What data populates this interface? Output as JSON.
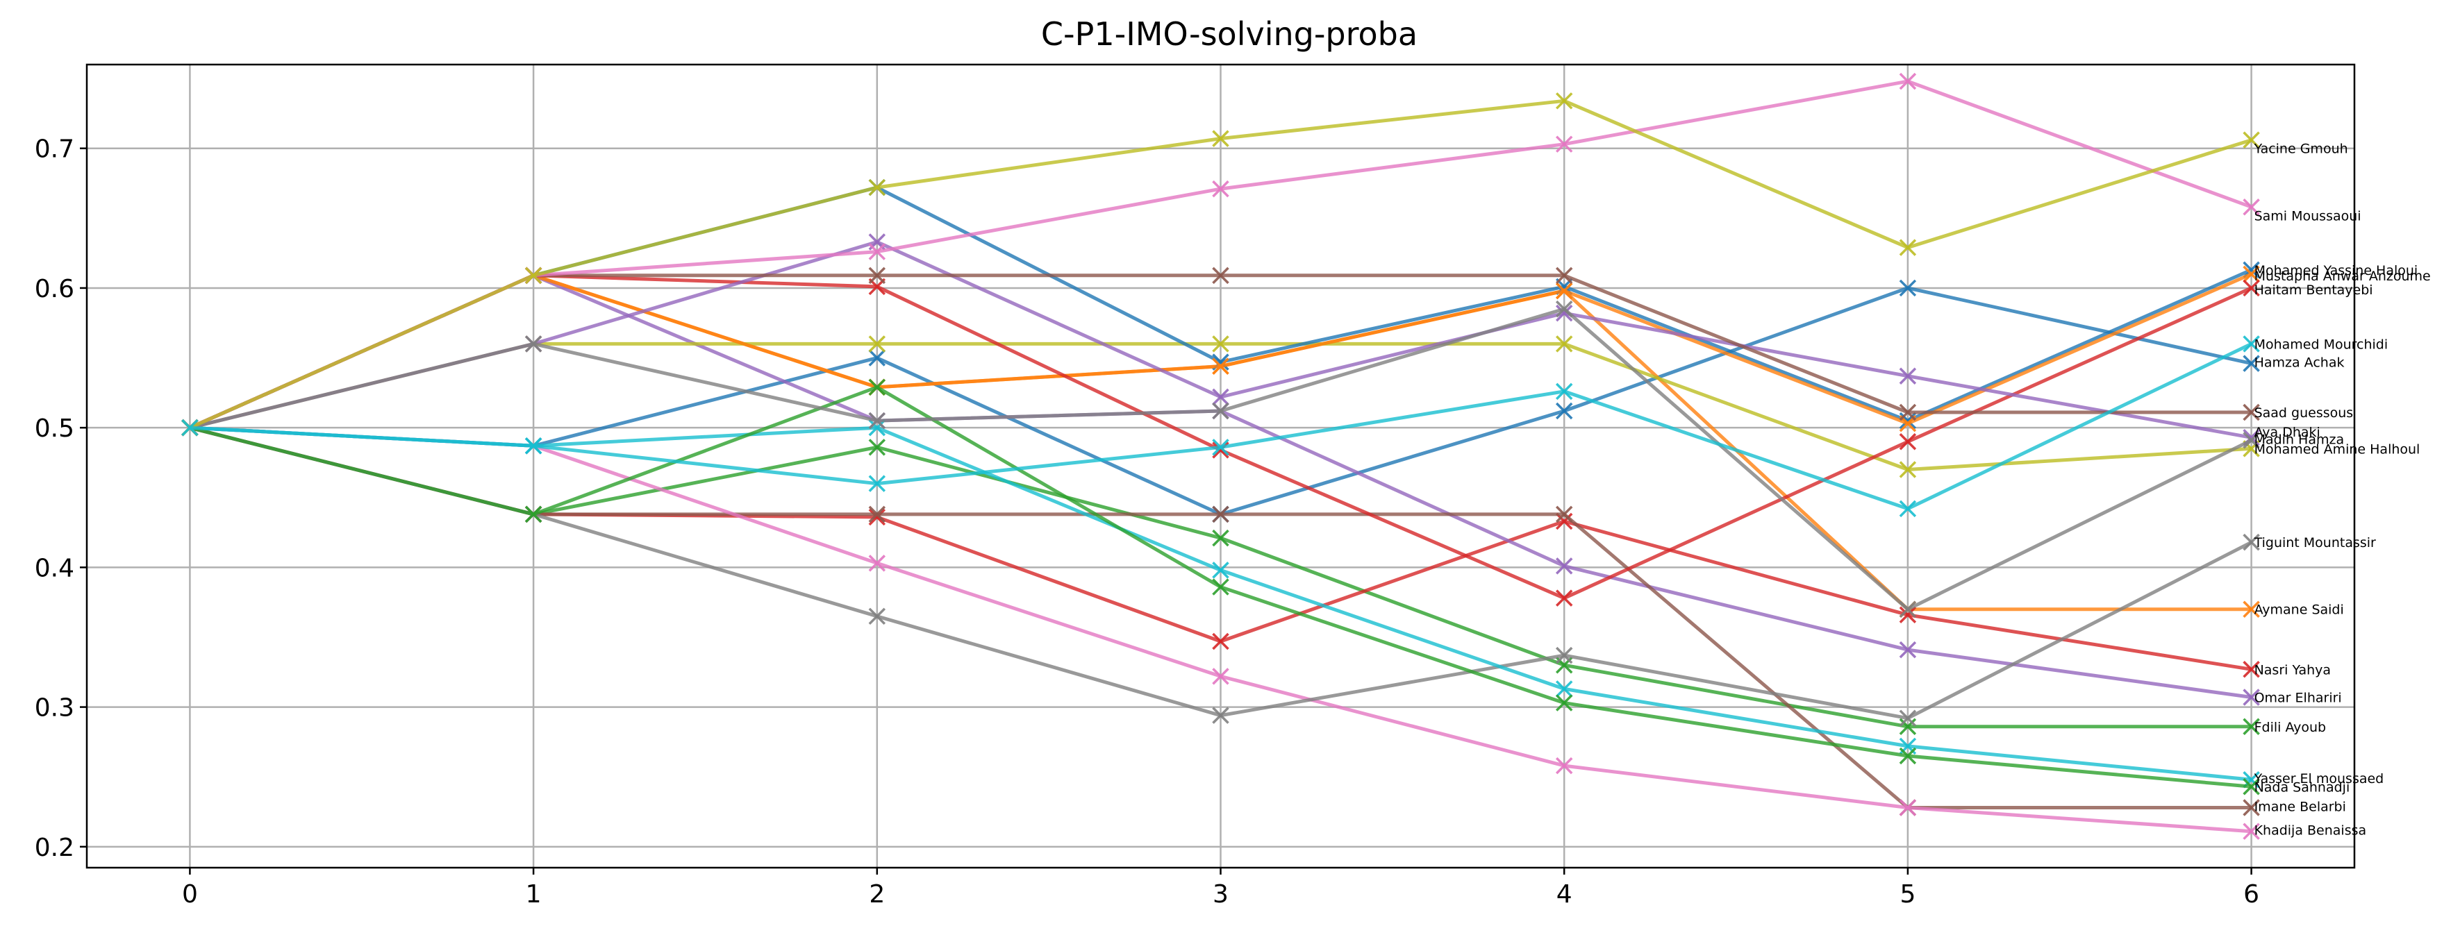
{
  "chart_data": {
    "type": "line",
    "title": "C-P1-IMO-solving-proba",
    "xlabel": "",
    "ylabel": "",
    "xlim": [
      -0.3,
      6.3
    ],
    "ylim": [
      0.185,
      0.76
    ],
    "xticks": [
      0,
      1,
      2,
      3,
      4,
      5,
      6
    ],
    "yticks": [
      0.2,
      0.3,
      0.4,
      0.5,
      0.6,
      0.7
    ],
    "ytick_labels": [
      "0.2",
      "0.3",
      "0.4",
      "0.5",
      "0.6",
      "0.7"
    ],
    "grid": true,
    "marker": "x",
    "x": [
      0,
      1,
      2,
      3,
      4,
      5,
      6
    ],
    "series": [
      {
        "name": "Hamza Achak",
        "color": "#1f77b4",
        "values": [
          0.5,
          0.487,
          0.55,
          0.438,
          0.512,
          0.6,
          0.546
        ]
      },
      {
        "name": "Aymane Saidi",
        "color": "#ff7f0e",
        "values": [
          0.5,
          0.609,
          0.529,
          0.544,
          0.598,
          0.37,
          0.37
        ]
      },
      {
        "name": "Fdili Ayoub",
        "color": "#2ca02c",
        "values": [
          0.5,
          0.438,
          0.486,
          0.421,
          0.33,
          0.286,
          0.286
        ]
      },
      {
        "name": "Nasri Yahya",
        "color": "#d62728",
        "values": [
          0.5,
          0.438,
          0.436,
          0.347,
          0.433,
          0.366,
          0.327
        ]
      },
      {
        "name": "Omar Elhariri",
        "color": "#9467bd",
        "values": [
          0.5,
          0.609,
          0.505,
          0.512,
          0.401,
          0.341,
          0.307
        ]
      },
      {
        "name": "Imane Belarbi",
        "color": "#8c564b",
        "values": [
          0.5,
          0.438,
          0.438,
          0.438,
          0.438,
          0.228,
          0.228
        ]
      },
      {
        "name": "Khadija Benaissa",
        "color": "#e377c2",
        "values": [
          0.5,
          0.487,
          0.403,
          0.322,
          0.258,
          0.228,
          0.211
        ]
      },
      {
        "name": "Tiguint Mountassir",
        "color": "#7f7f7f",
        "values": [
          0.5,
          0.438,
          0.365,
          0.294,
          0.337,
          0.292,
          0.418
        ]
      },
      {
        "name": "Mohamed Amine Halhoul",
        "color": "#bcbd22",
        "values": [
          0.5,
          0.56,
          0.56,
          0.56,
          0.56,
          0.47,
          0.485
        ]
      },
      {
        "name": "Yasser El moussaed",
        "color": "#17becf",
        "values": [
          0.5,
          0.487,
          0.5,
          0.398,
          0.313,
          0.272,
          0.248
        ]
      },
      {
        "name": "Mohamed Yassine Haloui",
        "color": "#1f77b4",
        "values": [
          0.5,
          0.609,
          0.672,
          0.547,
          0.601,
          0.505,
          0.613
        ]
      },
      {
        "name": "Mustapha Anwar Anzoume",
        "color": "#ff7f0e",
        "values": [
          0.5,
          0.609,
          0.529,
          0.544,
          0.598,
          0.503,
          0.61
        ]
      },
      {
        "name": "Nada Sahnadji",
        "color": "#2ca02c",
        "values": [
          0.5,
          0.438,
          0.529,
          0.386,
          0.303,
          0.265,
          0.243
        ]
      },
      {
        "name": "Haitam Bentayebi",
        "color": "#d62728",
        "values": [
          0.5,
          0.609,
          0.601,
          0.484,
          0.378,
          0.49,
          0.6
        ]
      },
      {
        "name": "Aya Dhaki",
        "color": "#9467bd",
        "values": [
          0.5,
          0.56,
          0.633,
          0.522,
          0.582,
          0.537,
          0.493
        ]
      },
      {
        "name": "Saad guessous",
        "color": "#8c564b",
        "values": [
          0.5,
          0.609,
          0.609,
          0.609,
          0.609,
          0.511,
          0.511
        ]
      },
      {
        "name": "Sami Moussaoui",
        "color": "#e377c2",
        "values": [
          0.5,
          0.609,
          0.626,
          0.671,
          0.703,
          0.748,
          0.658
        ]
      },
      {
        "name": "Madih Hamza",
        "color": "#7f7f7f",
        "values": [
          0.5,
          0.56,
          0.505,
          0.512,
          0.585,
          0.37,
          0.491
        ]
      },
      {
        "name": "Yacine Gmouh",
        "color": "#bcbd22",
        "values": [
          0.5,
          0.609,
          0.672,
          0.707,
          0.734,
          0.629,
          0.706
        ]
      },
      {
        "name": "Mohamed Mourchidi",
        "color": "#17becf",
        "values": [
          0.5,
          0.487,
          0.46,
          0.486,
          0.526,
          0.442,
          0.56
        ]
      }
    ],
    "end_labels": [
      {
        "text": "Yacine Gmouh",
        "y": 0.7
      },
      {
        "text": "Sami Moussaoui",
        "y": 0.652
      },
      {
        "text": "Mohamed Yassine Haloui",
        "y": 0.613
      },
      {
        "text": "Mustapha Anwar Anzoume",
        "y": 0.609
      },
      {
        "text": "Haitam Bentayebi",
        "y": 0.599
      },
      {
        "text": "Mohamed Mourchidi",
        "y": 0.56
      },
      {
        "text": "Hamza Achak",
        "y": 0.547
      },
      {
        "text": "Saad guessous",
        "y": 0.511
      },
      {
        "text": "Aya Dhaki",
        "y": 0.497
      },
      {
        "text": "Madih Hamza",
        "y": 0.492
      },
      {
        "text": "Mohamed Amine Halhoul",
        "y": 0.485
      },
      {
        "text": "Tiguint Mountassir",
        "y": 0.418
      },
      {
        "text": "Aymane Saidi",
        "y": 0.37
      },
      {
        "text": "Nasri Yahya",
        "y": 0.327
      },
      {
        "text": "Omar Elhariri",
        "y": 0.307
      },
      {
        "text": "Fdili Ayoub",
        "y": 0.286
      },
      {
        "text": "Yasser El moussaed",
        "y": 0.249
      },
      {
        "text": "Nada Sahnadji",
        "y": 0.243
      },
      {
        "text": "Imane Belarbi",
        "y": 0.229
      },
      {
        "text": "Khadija Benaissa",
        "y": 0.212
      }
    ]
  }
}
